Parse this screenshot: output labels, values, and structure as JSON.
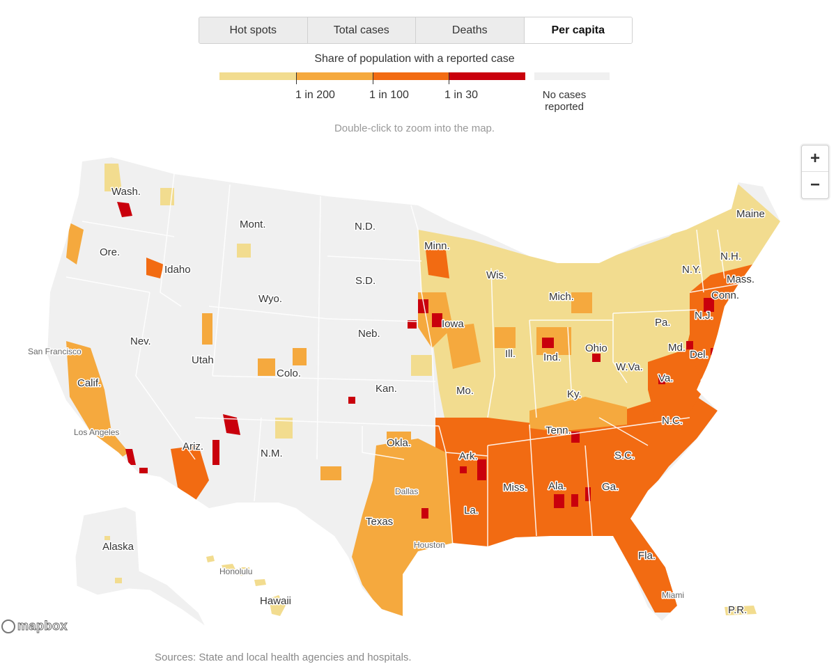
{
  "tabs": [
    {
      "label": "Hot spots",
      "active": false
    },
    {
      "label": "Total cases",
      "active": false
    },
    {
      "label": "Deaths",
      "active": false
    },
    {
      "label": "Per capita",
      "active": true
    }
  ],
  "legend": {
    "title": "Share of population with a reported case",
    "ticks": [
      "1 in 200",
      "1 in 100",
      "1 in 30"
    ],
    "no_data_label": "No cases reported",
    "colors": [
      "#f2dc8f",
      "#f5a93e",
      "#f26b12",
      "#c9000c"
    ],
    "no_data_color": "#f0f0f0"
  },
  "hint": "Double-click to zoom into the map.",
  "zoom": {
    "in_label": "+",
    "out_label": "−"
  },
  "attribution": "mapbox",
  "source": "Sources: State and local health agencies and hospitals.",
  "map": {
    "state_labels": [
      "Wash.",
      "Mont.",
      "N.D.",
      "Minn.",
      "Maine",
      "Ore.",
      "Idaho",
      "S.D.",
      "Wis.",
      "N.Y.",
      "N.H.",
      "Mass.",
      "Mich.",
      "Wyo.",
      "Conn.",
      "Iowa",
      "Pa.",
      "N.J.",
      "Neb.",
      "Nev.",
      "Utah",
      "Ohio",
      "Md.",
      "Ill.",
      "Ind.",
      "Del.",
      "Colo.",
      "Calif.",
      "W.Va.",
      "Va.",
      "Kan.",
      "Mo.",
      "Ky.",
      "N.C.",
      "Tenn.",
      "Okla.",
      "Ariz.",
      "N.M.",
      "Ark.",
      "S.C.",
      "Miss.",
      "Ala.",
      "Ga.",
      "La.",
      "Texas",
      "Fla.",
      "Alaska",
      "Hawaii",
      "P.R."
    ],
    "city_labels": [
      "San Francisco",
      "Los Angeles",
      "Dallas",
      "Houston",
      "Honolulu",
      "Miami"
    ]
  }
}
